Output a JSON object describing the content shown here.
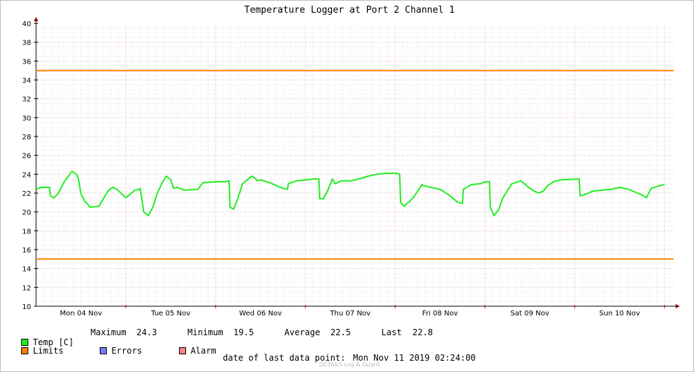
{
  "chart_data": {
    "type": "line",
    "title": "Temperature Logger at Port 2 Channel 1",
    "xlabel": "",
    "ylabel": "",
    "ylim": [
      10,
      40
    ],
    "yticks": [
      10,
      12,
      14,
      16,
      18,
      20,
      22,
      24,
      26,
      28,
      30,
      32,
      34,
      36,
      38,
      40
    ],
    "xlim": [
      0,
      7.1
    ],
    "xticks": [
      {
        "x": 0.5,
        "label": "Mon 04 Nov"
      },
      {
        "x": 1.5,
        "label": "Tue 05 Nov"
      },
      {
        "x": 2.5,
        "label": "Wed 06 Nov"
      },
      {
        "x": 3.5,
        "label": "Thu 07 Nov"
      },
      {
        "x": 4.5,
        "label": "Fri 08 Nov"
      },
      {
        "x": 5.5,
        "label": "Sat 09 Nov"
      },
      {
        "x": 6.5,
        "label": "Sun 10 Nov"
      }
    ],
    "grid": true,
    "series": [
      {
        "name": "Temp [C]",
        "color": "#22ee22",
        "x": [
          0.0,
          0.05,
          0.15,
          0.16,
          0.2,
          0.25,
          0.32,
          0.4,
          0.45,
          0.47,
          0.5,
          0.55,
          0.56,
          0.6,
          0.7,
          0.8,
          0.85,
          0.86,
          0.9,
          1.0,
          1.1,
          1.15,
          1.16,
          1.2,
          1.25,
          1.3,
          1.35,
          1.4,
          1.45,
          1.5,
          1.53,
          1.57,
          1.6,
          1.65,
          1.8,
          1.85,
          1.86,
          2.0,
          2.1,
          2.15,
          2.16,
          2.2,
          2.25,
          2.3,
          2.4,
          2.45,
          2.46,
          2.5,
          2.6,
          2.7,
          2.75,
          2.8,
          2.81,
          2.9,
          3.1,
          3.15,
          3.16,
          3.2,
          3.25,
          3.3,
          3.33,
          3.4,
          3.5,
          3.6,
          3.7,
          3.8,
          3.9,
          4.0,
          4.05,
          4.06,
          4.1,
          4.2,
          4.3,
          4.31,
          4.4,
          4.5,
          4.6,
          4.7,
          4.75,
          4.76,
          4.85,
          4.95,
          5.0,
          5.05,
          5.06,
          5.1,
          5.15,
          5.2,
          5.3,
          5.4,
          5.5,
          5.55,
          5.6,
          5.65,
          5.7,
          5.75,
          5.76,
          5.85,
          6.05,
          6.06,
          6.1,
          6.2,
          6.3,
          6.4,
          6.5,
          6.6,
          6.7,
          6.75,
          6.8,
          6.85,
          6.95,
          7.0
        ],
        "values": [
          22.4,
          22.6,
          22.6,
          21.7,
          21.5,
          22.0,
          23.3,
          24.3,
          24.0,
          23.6,
          21.9,
          21.0,
          21.0,
          20.5,
          20.6,
          22.2,
          22.6,
          22.6,
          22.4,
          21.5,
          22.3,
          22.4,
          22.5,
          20.0,
          19.6,
          20.5,
          22.0,
          23.0,
          23.8,
          23.4,
          22.5,
          22.6,
          22.5,
          22.3,
          22.4,
          23.0,
          23.1,
          23.2,
          23.2,
          23.3,
          20.5,
          20.3,
          21.5,
          23.0,
          23.8,
          23.5,
          23.3,
          23.4,
          23.1,
          22.7,
          22.5,
          22.4,
          23.0,
          23.3,
          23.5,
          23.5,
          21.4,
          21.4,
          22.3,
          23.5,
          23.0,
          23.3,
          23.3,
          23.5,
          23.8,
          24.0,
          24.1,
          24.1,
          24.0,
          21.0,
          20.6,
          21.5,
          22.9,
          22.8,
          22.6,
          22.4,
          21.8,
          21.0,
          20.9,
          22.4,
          22.9,
          23.0,
          23.2,
          23.2,
          20.5,
          19.6,
          20.2,
          21.5,
          23.0,
          23.3,
          22.5,
          22.2,
          22.0,
          22.2,
          22.8,
          23.1,
          23.2,
          23.4,
          23.5,
          21.7,
          21.8,
          22.2,
          22.3,
          22.4,
          22.6,
          22.4,
          22.0,
          21.8,
          21.5,
          22.5,
          22.8,
          22.9
        ]
      },
      {
        "name": "Limits",
        "color": "#ff7f00",
        "x": [
          0,
          7.1
        ],
        "values": [
          35,
          35
        ]
      },
      {
        "name": "Limits",
        "color": "#ff7f00",
        "x": [
          0,
          7.1
        ],
        "values": [
          15,
          15
        ]
      }
    ]
  },
  "legend": {
    "items": [
      {
        "label": "Temp [C]",
        "color": "#22ee22"
      },
      {
        "label": "Limits",
        "color": "#ff7f00"
      },
      {
        "label": "Errors",
        "color": "#7a7aff"
      },
      {
        "label": "Alarm",
        "color": "#ff8080"
      }
    ],
    "stats": {
      "maximum_label": "Maximum",
      "maximum": "24.3",
      "minimum_label": "Minimum",
      "minimum": "19.5",
      "average_label": "Average",
      "average": "22.5",
      "last_label": "Last",
      "last": "22.8"
    }
  },
  "footer": {
    "label": "date of last data point:",
    "value": "Mon Nov 11 2019 02:24:00",
    "credit": "OCTA&S Log & Guard"
  }
}
